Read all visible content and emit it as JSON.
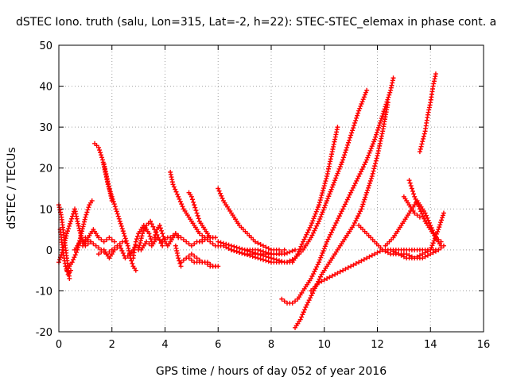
{
  "chart_data": {
    "type": "scatter",
    "title": "dSTEC Iono. truth (salu, Lon=315, Lat=-2, h=22): STEC-STEC_elemax in phase cont. a",
    "xlabel": "GPS time / hours of day 052 of year 2016",
    "ylabel": "dSTEC  / TECUs",
    "xlim": [
      0,
      16
    ],
    "ylim": [
      -20,
      50
    ],
    "xticks": [
      0,
      2,
      4,
      6,
      8,
      10,
      12,
      14,
      16
    ],
    "yticks": [
      -20,
      -10,
      0,
      10,
      20,
      30,
      40,
      50
    ],
    "grid": true,
    "marker": "plus",
    "color": "#ff0000",
    "series": [
      {
        "x": [
          0.0,
          0.1,
          0.2,
          0.3,
          0.4
        ],
        "y": [
          11,
          8,
          3,
          -2,
          -7
        ]
      },
      {
        "x": [
          0.05,
          0.15,
          0.25,
          0.35,
          0.45
        ],
        "y": [
          5,
          0,
          -4,
          -6,
          -5
        ]
      },
      {
        "x": [
          0.0,
          0.15,
          0.3,
          0.45,
          0.6,
          0.7,
          0.85,
          1.0,
          1.2
        ],
        "y": [
          -3,
          0,
          4,
          7,
          10,
          7,
          3,
          1,
          2
        ]
      },
      {
        "x": [
          0.3,
          0.5,
          0.7,
          0.85,
          1.0,
          1.15,
          1.25
        ],
        "y": [
          -5,
          -3,
          0,
          4,
          8,
          11,
          12
        ]
      },
      {
        "x": [
          0.6,
          0.8,
          1.0,
          1.2,
          1.4,
          1.6,
          1.8,
          2.0,
          2.2,
          2.4,
          2.5
        ],
        "y": [
          0,
          2,
          3,
          2,
          1,
          0,
          -1,
          0,
          1,
          2,
          2
        ]
      },
      {
        "x": [
          0.9,
          1.1,
          1.3,
          1.5,
          1.7,
          1.9,
          2.1
        ],
        "y": [
          1,
          3,
          5,
          3,
          2,
          3,
          2
        ]
      },
      {
        "x": [
          1.35,
          1.5,
          1.65,
          1.75,
          1.85,
          2.0,
          2.15,
          2.3,
          2.45,
          2.6,
          2.7,
          2.8,
          2.9
        ],
        "y": [
          26,
          25,
          22,
          19,
          16,
          13,
          10,
          7,
          4,
          1,
          -2,
          -4,
          -5
        ]
      },
      {
        "x": [
          1.7,
          1.8,
          1.9,
          2.0
        ],
        "y": [
          21,
          18,
          15,
          12
        ]
      },
      {
        "x": [
          1.5,
          1.7,
          1.9,
          2.1,
          2.3,
          2.5,
          2.7,
          2.9,
          3.1,
          3.3,
          3.5,
          3.7,
          3.9,
          4.1
        ],
        "y": [
          -1,
          0,
          -2,
          0,
          1,
          -2,
          -1,
          1,
          0,
          2,
          1,
          3,
          2,
          3
        ]
      },
      {
        "x": [
          2.8,
          2.9,
          3.0,
          3.1,
          3.2,
          3.3,
          3.4,
          3.5
        ],
        "y": [
          -2,
          2,
          4,
          5,
          6,
          5,
          4,
          2
        ]
      },
      {
        "x": [
          3.0,
          3.15,
          3.3,
          3.45,
          3.6,
          3.75,
          3.9
        ],
        "y": [
          0,
          4,
          6,
          7,
          5,
          3,
          1
        ]
      },
      {
        "x": [
          3.6,
          3.7,
          3.8,
          3.9,
          4.0,
          4.1,
          4.2,
          4.3,
          4.4,
          4.5
        ],
        "y": [
          3,
          5,
          6,
          4,
          2,
          1,
          2,
          3,
          4,
          3
        ]
      },
      {
        "x": [
          4.2,
          4.4,
          4.6,
          4.8,
          5.0,
          5.2,
          5.4,
          5.6,
          5.8
        ],
        "y": [
          3,
          4,
          3,
          2,
          1,
          2,
          2,
          3,
          3
        ]
      },
      {
        "x": [
          4.2,
          4.3,
          4.5,
          4.7,
          4.9,
          5.1,
          5.3,
          5.5,
          5.7,
          5.9
        ],
        "y": [
          19,
          16,
          13,
          10,
          8,
          6,
          4,
          3,
          3,
          3
        ]
      },
      {
        "x": [
          4.9,
          5.0,
          5.1,
          5.2,
          5.3,
          5.5,
          5.7
        ],
        "y": [
          14,
          13,
          11,
          9,
          7,
          5,
          3
        ]
      },
      {
        "x": [
          4.6,
          4.8,
          5.0,
          5.2,
          5.4,
          5.6,
          5.8,
          6.0
        ],
        "y": [
          -3,
          -2,
          -1,
          -2,
          -3,
          -3,
          -4,
          -4
        ]
      },
      {
        "x": [
          4.4,
          4.5,
          4.6
        ],
        "y": [
          1,
          -2,
          -4
        ]
      },
      {
        "x": [
          4.9,
          5.1,
          5.3,
          5.5,
          5.7,
          5.9
        ],
        "y": [
          -2,
          -3,
          -3,
          -3,
          -4,
          -4
        ]
      },
      {
        "x": [
          5.3,
          5.5,
          5.7,
          5.9,
          6.2,
          6.5,
          7.0,
          7.5,
          8.0,
          8.3,
          8.5
        ],
        "y": [
          2,
          3,
          2,
          1,
          1,
          0,
          -1,
          -1,
          -1,
          -1,
          0
        ]
      },
      {
        "x": [
          6.0,
          6.2,
          6.5,
          6.8,
          7.1,
          7.4,
          7.7,
          8.0,
          8.3
        ],
        "y": [
          15,
          12,
          9,
          6,
          4,
          2,
          1,
          0,
          0
        ]
      },
      {
        "x": [
          6.0,
          6.5,
          7.0,
          7.5,
          8.0,
          8.5,
          8.8,
          9.0,
          9.2,
          9.5,
          9.8,
          10.1,
          10.3,
          10.5
        ],
        "y": [
          2,
          1,
          0,
          -1,
          -2,
          -3,
          -3,
          -1,
          2,
          6,
          11,
          18,
          24,
          30
        ]
      },
      {
        "x": [
          6.5,
          7.0,
          7.5,
          8.0,
          8.3,
          8.6,
          8.9,
          9.2,
          9.5,
          9.8,
          10.1,
          10.4,
          10.7,
          11.0,
          11.3,
          11.6
        ],
        "y": [
          0,
          -1,
          -2,
          -3,
          -3,
          -3,
          -2,
          0,
          3,
          7,
          12,
          17,
          22,
          28,
          34,
          39
        ]
      },
      {
        "x": [
          7.0,
          7.5,
          8.0,
          8.5,
          8.9
        ],
        "y": [
          0,
          0,
          -1,
          -1,
          0
        ]
      },
      {
        "x": [
          8.4,
          8.6,
          8.8,
          9.0,
          9.2,
          9.5,
          9.8,
          10.1,
          10.4,
          10.7,
          11.0,
          11.3,
          11.6,
          11.9,
          12.1,
          12.3,
          12.5,
          12.6
        ],
        "y": [
          -12,
          -13,
          -13,
          -12,
          -10,
          -7,
          -3,
          2,
          6,
          10,
          14,
          18,
          22,
          27,
          31,
          35,
          39,
          42
        ]
      },
      {
        "x": [
          8.9,
          9.1,
          9.3,
          9.6,
          9.9,
          10.2,
          10.5,
          10.8,
          11.1,
          11.4,
          11.6,
          11.8,
          12.0,
          12.2,
          12.4
        ],
        "y": [
          -19,
          -17,
          -14,
          -10,
          -6,
          -3,
          0,
          3,
          6,
          10,
          14,
          18,
          23,
          29,
          36
        ]
      },
      {
        "x": [
          9.5,
          9.8,
          10.1,
          10.4,
          10.7,
          11.0,
          11.3,
          11.6,
          11.9,
          12.2,
          12.5,
          12.8,
          13.1,
          13.4,
          13.7,
          14.0,
          14.3,
          14.5
        ],
        "y": [
          -10,
          -8,
          -7,
          -6,
          -5,
          -4,
          -3,
          -2,
          -1,
          0,
          0,
          0,
          0,
          0,
          0,
          0,
          0,
          1
        ]
      },
      {
        "x": [
          11.3,
          11.6,
          11.9,
          12.2,
          12.5,
          12.8,
          13.1,
          13.4,
          13.7,
          14.0,
          14.3
        ],
        "y": [
          6,
          4,
          2,
          0,
          -1,
          -1,
          -1,
          -2,
          -2,
          -1,
          0
        ]
      },
      {
        "x": [
          12.3,
          12.6,
          12.9,
          13.2,
          13.5,
          13.8,
          14.0,
          14.2,
          14.4
        ],
        "y": [
          1,
          3,
          6,
          9,
          12,
          9,
          6,
          3,
          1
        ]
      },
      {
        "x": [
          13.2,
          13.3,
          13.4,
          13.6,
          13.8,
          14.0,
          14.2,
          14.4
        ],
        "y": [
          17,
          15,
          13,
          10,
          7,
          5,
          3,
          2
        ]
      },
      {
        "x": [
          13.6,
          13.8,
          13.9,
          14.0,
          14.1,
          14.2
        ],
        "y": [
          24,
          29,
          33,
          36,
          40,
          43
        ]
      },
      {
        "x": [
          13.0,
          13.2,
          13.4,
          13.6
        ],
        "y": [
          13,
          11,
          9,
          8
        ]
      },
      {
        "x": [
          12.5,
          12.8,
          13.1,
          13.4,
          13.7,
          14.0,
          14.3,
          14.5
        ],
        "y": [
          0,
          -1,
          -2,
          -2,
          -1,
          0,
          5,
          9
        ]
      }
    ]
  }
}
